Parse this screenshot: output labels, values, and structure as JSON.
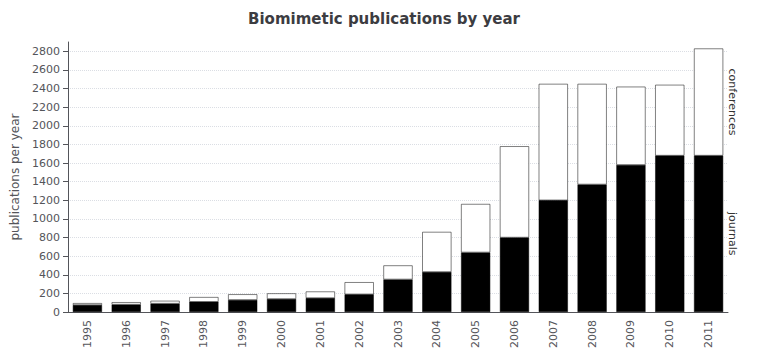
{
  "chart_data": {
    "type": "bar",
    "title": "Biomimetic publications by year",
    "ylabel": "publications per year",
    "categories": [
      "1995",
      "1996",
      "1997",
      "1998",
      "1999",
      "2000",
      "2001",
      "2002",
      "2003",
      "2004",
      "2005",
      "2006",
      "2007",
      "2008",
      "2009",
      "2010",
      "2011"
    ],
    "series": [
      {
        "name": "journals",
        "color": "#000000",
        "values": [
          75,
          80,
          90,
          110,
          130,
          140,
          150,
          190,
          350,
          430,
          640,
          800,
          1200,
          1370,
          1580,
          1680,
          1680
        ]
      },
      {
        "name": "conferences",
        "color": "#ffffff",
        "values": [
          20,
          25,
          30,
          50,
          60,
          60,
          70,
          130,
          150,
          430,
          520,
          980,
          1250,
          1080,
          840,
          760,
          1150
        ]
      }
    ],
    "stacked": true,
    "ylim": [
      0,
      2900
    ],
    "yticks": [
      0,
      200,
      400,
      600,
      800,
      1000,
      1200,
      1400,
      1600,
      1800,
      2000,
      2200,
      2400,
      2600,
      2800
    ],
    "grid": true
  }
}
